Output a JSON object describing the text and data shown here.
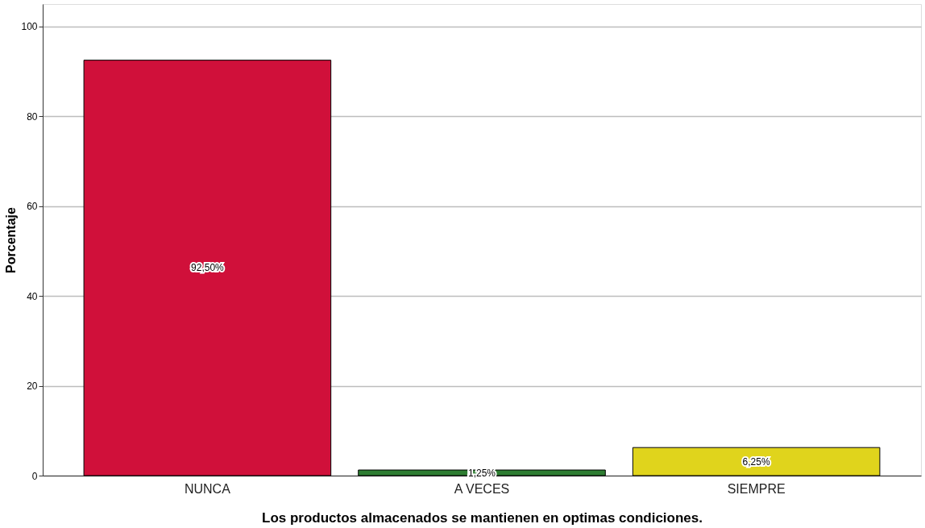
{
  "chart_data": {
    "type": "bar",
    "xlabel": "Los productos almacenados se mantienen en optimas condiciones.",
    "ylabel": "Porcentaje",
    "categories": [
      "NUNCA",
      "A VECES",
      "SIEMPRE"
    ],
    "values": [
      92.5,
      1.25,
      6.25
    ],
    "value_labels": [
      "92,50%",
      "1,25%",
      "6,25%"
    ],
    "colors": [
      "#d0103a",
      "#2e7d32",
      "#e0d41c"
    ],
    "ylim": [
      0,
      105
    ],
    "yticks": [
      0,
      20,
      40,
      60,
      80,
      100
    ],
    "grid": "y"
  }
}
